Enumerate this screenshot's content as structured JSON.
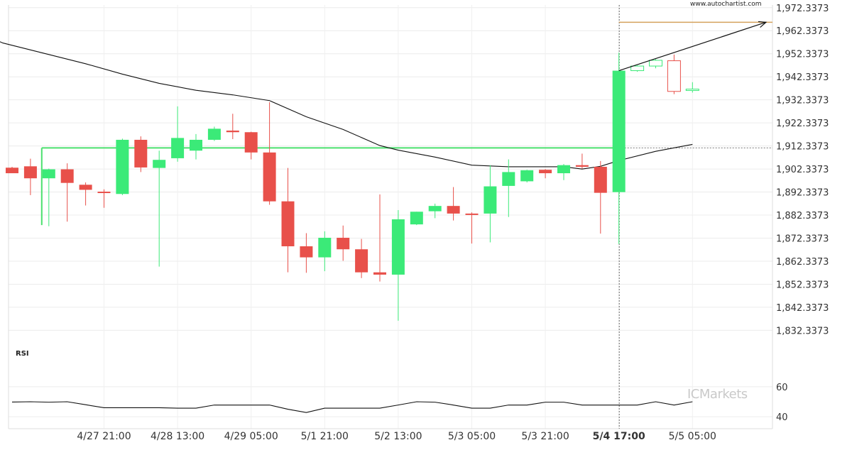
{
  "site_url": "www.autochartist.com",
  "watermark": {
    "brand": "ICMarkets"
  },
  "chart_data": {
    "type": "candlestick",
    "price_axis": {
      "range": [
        1826.3,
        1973.5
      ],
      "ticks": [
        "1,972.3373",
        "1,962.3373",
        "1,952.3373",
        "1,942.3373",
        "1,932.3373",
        "1,922.3373",
        "1,912.3373",
        "1,902.3373",
        "1,892.3373",
        "1,882.3373",
        "1,872.3373",
        "1,862.3373",
        "1,852.3373",
        "1,842.3373",
        "1,832.3373"
      ],
      "tick_values": [
        1972.3373,
        1962.3373,
        1952.3373,
        1942.3373,
        1932.3373,
        1922.3373,
        1912.3373,
        1902.3373,
        1892.3373,
        1882.3373,
        1872.3373,
        1862.3373,
        1852.3373,
        1842.3373,
        1832.3373
      ]
    },
    "time_axis": {
      "labels": [
        {
          "text": "4/27 21:00",
          "index": 5,
          "bold": false
        },
        {
          "text": "4/28 13:00",
          "index": 9,
          "bold": false
        },
        {
          "text": "4/29 05:00",
          "index": 13,
          "bold": false
        },
        {
          "text": "5/1 21:00",
          "index": 17,
          "bold": false
        },
        {
          "text": "5/2 13:00",
          "index": 21,
          "bold": false
        },
        {
          "text": "5/3 05:00",
          "index": 25,
          "bold": false
        },
        {
          "text": "5/3 21:00",
          "index": 29,
          "bold": false
        },
        {
          "text": "5/4 17:00",
          "index": 33,
          "bold": true
        },
        {
          "text": "5/5 05:00",
          "index": 37,
          "bold": false
        }
      ]
    },
    "candles": [
      {
        "o": 1902.9,
        "h": 1903.3,
        "l": 1901.0,
        "c": 1900.5
      },
      {
        "o": 1903.5,
        "h": 1906.8,
        "l": 1891.0,
        "c": 1898.3
      },
      {
        "o": 1898.3,
        "h": 1902.5,
        "l": 1877.5,
        "c": 1902.2
      },
      {
        "o": 1902.2,
        "h": 1904.8,
        "l": 1879.5,
        "c": 1896.3
      },
      {
        "o": 1895.5,
        "h": 1896.5,
        "l": 1886.5,
        "c": 1893.3
      },
      {
        "o": 1892.5,
        "h": 1893.5,
        "l": 1885.5,
        "c": 1892.0
      },
      {
        "o": 1891.5,
        "h": 1915.5,
        "l": 1891.0,
        "c": 1915.0
      },
      {
        "o": 1915.0,
        "h": 1916.5,
        "l": 1901.0,
        "c": 1903.0
      },
      {
        "o": 1902.8,
        "h": 1910.3,
        "l": 1860.0,
        "c": 1906.3
      },
      {
        "o": 1907.0,
        "h": 1929.5,
        "l": 1905.5,
        "c": 1915.8
      },
      {
        "o": 1910.3,
        "h": 1917.5,
        "l": 1906.5,
        "c": 1915.0
      },
      {
        "o": 1915.0,
        "h": 1920.7,
        "l": 1914.5,
        "c": 1919.8
      },
      {
        "o": 1919.0,
        "h": 1926.3,
        "l": 1915.3,
        "c": 1918.3
      },
      {
        "o": 1918.3,
        "h": 1918.5,
        "l": 1906.5,
        "c": 1909.5
      },
      {
        "o": 1909.5,
        "h": 1931.3,
        "l": 1886.8,
        "c": 1888.3
      },
      {
        "o": 1888.3,
        "h": 1902.8,
        "l": 1857.5,
        "c": 1868.8
      },
      {
        "o": 1868.8,
        "h": 1874.5,
        "l": 1857.3,
        "c": 1864.0
      },
      {
        "o": 1864.0,
        "h": 1875.3,
        "l": 1858.0,
        "c": 1872.5
      },
      {
        "o": 1872.5,
        "h": 1877.8,
        "l": 1862.5,
        "c": 1867.5
      },
      {
        "o": 1867.5,
        "h": 1872.0,
        "l": 1855.0,
        "c": 1857.5
      },
      {
        "o": 1857.5,
        "h": 1891.3,
        "l": 1853.5,
        "c": 1856.5
      },
      {
        "o": 1856.5,
        "h": 1884.5,
        "l": 1836.5,
        "c": 1880.5
      },
      {
        "o": 1878.3,
        "h": 1883.8,
        "l": 1878.0,
        "c": 1883.8
      },
      {
        "o": 1884.0,
        "h": 1887.3,
        "l": 1881.0,
        "c": 1886.3
      },
      {
        "o": 1886.3,
        "h": 1894.5,
        "l": 1880.0,
        "c": 1883.0
      },
      {
        "o": 1883.0,
        "h": 1883.5,
        "l": 1870.0,
        "c": 1882.5
      },
      {
        "o": 1883.0,
        "h": 1904.0,
        "l": 1870.5,
        "c": 1894.8
      },
      {
        "o": 1895.0,
        "h": 1906.5,
        "l": 1881.5,
        "c": 1901.0
      },
      {
        "o": 1897.0,
        "h": 1902.0,
        "l": 1896.5,
        "c": 1901.8
      },
      {
        "o": 1902.0,
        "h": 1902.3,
        "l": 1898.3,
        "c": 1900.5
      },
      {
        "o": 1900.5,
        "h": 1904.5,
        "l": 1897.5,
        "c": 1904.0
      },
      {
        "o": 1904.0,
        "h": 1909.0,
        "l": 1902.5,
        "c": 1903.3
      },
      {
        "o": 1903.3,
        "h": 1905.8,
        "l": 1874.3,
        "c": 1892.0
      },
      {
        "o": 1892.3,
        "h": 1952.8,
        "l": 1869.8,
        "c": 1945.0
      },
      {
        "o": 1945.0,
        "h": 1947.3,
        "l": 1944.5,
        "c": 1947.0
      },
      {
        "o": 1947.0,
        "h": 1950.0,
        "l": 1946.0,
        "c": 1949.5
      },
      {
        "o": 1949.3,
        "h": 1952.0,
        "l": 1934.8,
        "c": 1936.0
      },
      {
        "o": 1936.5,
        "h": 1940.0,
        "l": 1935.5,
        "c": 1937.0
      }
    ],
    "moving_average": [
      {
        "i": -1.5,
        "v": 1960.5
      },
      {
        "i": -0.5,
        "v": 1957.0
      },
      {
        "i": 2,
        "v": 1952.0
      },
      {
        "i": 4,
        "v": 1948.0
      },
      {
        "i": 6,
        "v": 1943.5
      },
      {
        "i": 8,
        "v": 1939.5
      },
      {
        "i": 10,
        "v": 1936.5
      },
      {
        "i": 12,
        "v": 1934.5
      },
      {
        "i": 14,
        "v": 1932.0
      },
      {
        "i": 16,
        "v": 1925.0
      },
      {
        "i": 18,
        "v": 1919.5
      },
      {
        "i": 20,
        "v": 1912.5
      },
      {
        "i": 21,
        "v": 1910.5
      },
      {
        "i": 23,
        "v": 1907.5
      },
      {
        "i": 25,
        "v": 1904.0
      },
      {
        "i": 27,
        "v": 1903.3
      },
      {
        "i": 30,
        "v": 1903.3
      },
      {
        "i": 31,
        "v": 1902.3
      },
      {
        "i": 32,
        "v": 1903.5
      },
      {
        "i": 33,
        "v": 1906.0
      },
      {
        "i": 35,
        "v": 1910.0
      },
      {
        "i": 37,
        "v": 1913.0
      }
    ],
    "support_level": {
      "value": 1911.5,
      "start_index": 2
    },
    "target_level": {
      "value": 1966.0,
      "start_index": 33
    },
    "trend_arrow": {
      "from_index": 33,
      "from_value": 1945.0,
      "to_index": 41,
      "to_value": 1966.0
    },
    "pattern_start_index": 33,
    "rsi": {
      "label": "RSI",
      "ticks": [
        "60",
        "40"
      ],
      "tick_values": [
        60,
        40
      ],
      "range": [
        32,
        68
      ],
      "values": [
        49.8,
        50.0,
        49.7,
        50.0,
        48.0,
        46.0,
        46.0,
        46.0,
        46.0,
        45.7,
        45.7,
        47.8,
        47.8,
        47.8,
        47.8,
        45.0,
        42.8,
        45.7,
        45.7,
        45.7,
        45.7,
        47.8,
        50.0,
        49.7,
        47.8,
        45.7,
        45.7,
        47.8,
        47.8,
        49.7,
        49.7,
        47.8,
        47.8,
        47.8,
        47.8,
        50.0,
        47.8,
        50.0
      ]
    }
  }
}
